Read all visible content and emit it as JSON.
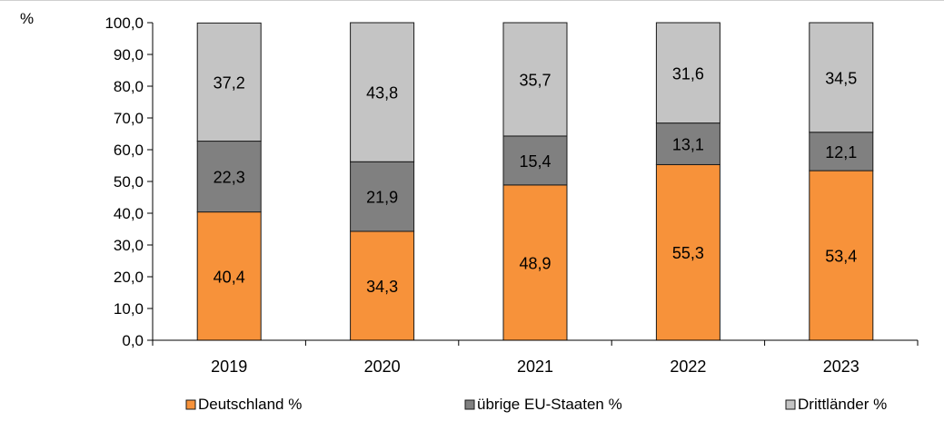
{
  "chart_data": {
    "type": "bar",
    "stacked": true,
    "title": "",
    "ylabel": "%",
    "xlabel": "",
    "ylim": [
      0,
      100
    ],
    "ytick_step": 10,
    "yticks": [
      "0,0",
      "10,0",
      "20,0",
      "30,0",
      "40,0",
      "50,0",
      "60,0",
      "70,0",
      "80,0",
      "90,0",
      "100,0"
    ],
    "categories": [
      "2019",
      "2020",
      "2021",
      "2022",
      "2023"
    ],
    "legend_position": "bottom",
    "grid": false,
    "series": [
      {
        "name": "Deutschland %",
        "color": "#f7923a",
        "values": [
          40.4,
          34.3,
          48.9,
          55.3,
          53.4
        ],
        "labels": [
          "40,4",
          "34,3",
          "48,9",
          "55,3",
          "53,4"
        ]
      },
      {
        "name": "übrige EU-Staaten %",
        "color": "#808080",
        "values": [
          22.3,
          21.9,
          15.4,
          13.1,
          12.1
        ],
        "labels": [
          "22,3",
          "21,9",
          "15,4",
          "13,1",
          "12,1"
        ]
      },
      {
        "name": "Drittländer %",
        "color": "#c4c4c4",
        "values": [
          37.2,
          43.8,
          35.7,
          31.6,
          34.5
        ],
        "labels": [
          "37,2",
          "43,8",
          "35,7",
          "31,6",
          "34,5"
        ]
      }
    ]
  }
}
